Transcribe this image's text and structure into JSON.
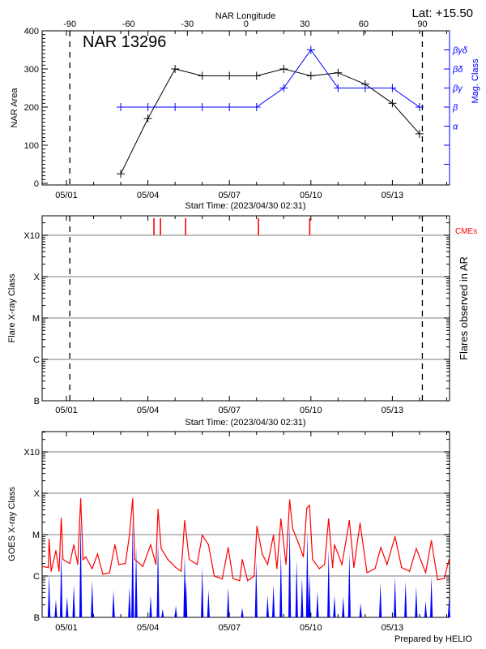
{
  "header": {
    "latitude": "Lat: +15.50",
    "region": "NAR 13296",
    "footer": "Prepared by HELIO"
  },
  "colors": {
    "area": "#000000",
    "mag_class": "#0000ff",
    "cme": "#ff0000",
    "goes_long": "#ff0000",
    "goes_short": "#0000ff",
    "grid": "#999999"
  },
  "chart_data": [
    {
      "type": "line",
      "panel": "nar",
      "title": "NAR 13296",
      "xlabel": "Start Time: (2023/04/30 02:31)",
      "x_range": [
        "2023/04/30 02:31",
        "2023/05/15 02:31"
      ],
      "x_tick_labels": [
        "05/01",
        "05/04",
        "05/07",
        "05/10",
        "05/13"
      ],
      "top_axis_label": "NAR Longitude",
      "top_axis_ticks": [
        "-90",
        "-60",
        "-30",
        "0",
        "30",
        "60",
        "90"
      ],
      "limb_lines": [
        "2023/05/01 03:00",
        "2023/05/14 02:30"
      ],
      "ylabel": "NAR Area",
      "ylim": [
        0,
        400
      ],
      "y_tick_labels": [
        "0",
        "100",
        "200",
        "300",
        "400"
      ],
      "y2label": "Mag. Class",
      "y2_tick_labels": [
        "",
        "",
        "α",
        "β",
        "βγ",
        "βδ",
        "βγδ"
      ],
      "x": [
        "2023/05/03 00:00",
        "2023/05/04 00:00",
        "2023/05/05 00:00",
        "2023/05/06 00:00",
        "2023/05/07 00:00",
        "2023/05/08 00:00",
        "2023/05/09 00:00",
        "2023/05/10 00:00",
        "2023/05/11 00:00",
        "2023/05/12 00:00",
        "2023/05/13 00:00",
        "2023/05/14 00:00"
      ],
      "series": [
        {
          "axis": "left",
          "values": [
            25,
            170,
            300,
            282,
            282,
            282,
            300,
            282,
            290,
            260,
            210,
            130
          ]
        },
        {
          "axis": "right",
          "values": [
            "β",
            "β",
            "β",
            "β",
            "β",
            "β",
            "βγ",
            "βγδ",
            "βγ",
            "βγ",
            "βγ",
            "β"
          ]
        }
      ]
    },
    {
      "type": "event",
      "panel": "flares",
      "xlabel": "Start Time: (2023/04/30 02:31)",
      "x_tick_labels": [
        "05/01",
        "05/04",
        "05/07",
        "05/10",
        "05/13"
      ],
      "ylabel": "Flare X-ray Class",
      "y2label": "Flares observed in AR",
      "y_tick_labels": [
        "B",
        "C",
        "M",
        "X",
        "X10"
      ],
      "grid": true,
      "cme_label": "CMEs",
      "cmes": [
        "2023/05/04 05:20",
        "2023/05/04 11:05",
        "2023/05/05 09:20",
        "2023/05/08 01:40",
        "2023/05/09 23:00"
      ],
      "flares": []
    },
    {
      "type": "line",
      "panel": "goes",
      "ylabel": "GOES X-ray Class",
      "x_tick_labels": [
        "05/01",
        "05/04",
        "05/07",
        "05/10",
        "05/13"
      ],
      "y_tick_labels": [
        "B",
        "C",
        "M",
        "X",
        "X10"
      ],
      "yscale": "log",
      "grid": true,
      "series": [
        {
          "channel": "long",
          "color": "#ff0000",
          "points": [
            [
              "2023/04/30 02:40",
              "C1.7"
            ],
            [
              "2023/04/30 08:00",
              "C1.6"
            ],
            [
              "2023/04/30 08:40",
              "C7.7"
            ],
            [
              "2023/04/30 10:30",
              "C1.3"
            ],
            [
              "2023/04/30 14:40",
              "C4.1"
            ],
            [
              "2023/04/30 17:30",
              "C1.3"
            ],
            [
              "2023/04/30 19:25",
              "M2.5"
            ],
            [
              "2023/04/30 21:00",
              "C2.5"
            ],
            [
              "2023/05/01 03:00",
              "C2.0"
            ],
            [
              "2023/05/01 06:30",
              "C5.7"
            ],
            [
              "2023/05/01 10:00",
              "C1.9"
            ],
            [
              "2023/05/01 12:35",
              "M7.4"
            ],
            [
              "2023/05/01 14:40",
              "C2.5"
            ],
            [
              "2023/05/01 17:05",
              "C2.9"
            ],
            [
              "2023/05/01 22:45",
              "C1.5"
            ],
            [
              "2023/05/02 03:30",
              "C3.4"
            ],
            [
              "2023/05/02 08:10",
              "C1.1"
            ],
            [
              "2023/05/02 14:05",
              "C1.2"
            ],
            [
              "2023/05/02 18:50",
              "C5.7"
            ],
            [
              "2023/05/02 22:20",
              "C1.9"
            ],
            [
              "2023/05/03 04:10",
              "C2.0"
            ],
            [
              "2023/05/03 07:40",
              "C9.7"
            ],
            [
              "2023/05/03 10:30",
              "M7.4"
            ],
            [
              "2023/05/03 12:25",
              "C2.5"
            ],
            [
              "2023/05/03 19:30",
              "C1.7"
            ],
            [
              "2023/05/04 02:25",
              "C5.7"
            ],
            [
              "2023/05/04 07:05",
              "C1.9"
            ],
            [
              "2023/05/04 08:55",
              "M4.1"
            ],
            [
              "2023/05/04 11:45",
              "C4.6"
            ],
            [
              "2023/05/04 17:40",
              "C2.5"
            ],
            [
              "2023/05/05 00:40",
              "C1.6"
            ],
            [
              "2023/05/05 05:25",
              "C1.3"
            ],
            [
              "2023/05/05 08:30",
              "M2.2"
            ],
            [
              "2023/05/05 12:30",
              "C2.5"
            ],
            [
              "2023/05/05 19:30",
              "C1.9"
            ],
            [
              "2023/05/06 00:00",
              "C9.7"
            ],
            [
              "2023/05/06 05:30",
              "C5.7"
            ],
            [
              "2023/05/06 10:35",
              "C1.0"
            ],
            [
              "2023/05/06 17:40",
              "B8.5"
            ],
            [
              "2023/05/06 22:55",
              "C4.9"
            ],
            [
              "2023/05/07 03:10",
              "B8.7"
            ],
            [
              "2023/05/07 09:00",
              "B7.7"
            ],
            [
              "2023/05/07 11:20",
              "C2.5"
            ],
            [
              "2023/05/07 16:05",
              "B7.7"
            ],
            [
              "2023/05/07 21:55",
              "C1.0"
            ],
            [
              "2023/05/08 00:20",
              "M1.6"
            ],
            [
              "2023/05/08 05:00",
              "C3.4"
            ],
            [
              "2023/05/08 09:45",
              "C1.9"
            ],
            [
              "2023/05/08 14:55",
              "C9.7"
            ],
            [
              "2023/05/08 18:00",
              "C1.5"
            ],
            [
              "2023/05/08 21:30",
              "M2.4"
            ],
            [
              "2023/05/09 02:00",
              "C1.9"
            ],
            [
              "2023/05/09 05:15",
              "M6.9"
            ],
            [
              "2023/05/09 07:55",
              "M1.4"
            ],
            [
              "2023/05/09 12:35",
              "C6.7"
            ],
            [
              "2023/05/09 17:20",
              "C2.9"
            ],
            [
              "2023/05/09 20:25",
              "M4.4"
            ],
            [
              "2023/05/09 22:45",
              "M5.1"
            ],
            [
              "2023/05/10 01:30",
              "C2.5"
            ],
            [
              "2023/05/10 07:25",
              "C1.5"
            ],
            [
              "2023/05/10 12:05",
              "C1.9"
            ],
            [
              "2023/05/10 15:40",
              "M2.4"
            ],
            [
              "2023/05/10 19:10",
              "C1.6"
            ],
            [
              "2023/05/10 20:50",
              "C5.7"
            ],
            [
              "2023/05/11 03:30",
              "C1.9"
            ],
            [
              "2023/05/11 10:00",
              "M2.2"
            ],
            [
              "2023/05/11 14:00",
              "C1.6"
            ],
            [
              "2023/05/11 19:25",
              "M1.9"
            ],
            [
              "2023/05/12 01:35",
              "C1.2"
            ],
            [
              "2023/05/12 08:40",
              "C1.5"
            ],
            [
              "2023/05/12 13:50",
              "C4.9"
            ],
            [
              "2023/05/12 19:15",
              "C1.9"
            ],
            [
              "2023/05/13 02:20",
              "C9.0"
            ],
            [
              "2023/05/13 08:10",
              "C1.6"
            ],
            [
              "2023/05/13 15:15",
              "C1.3"
            ],
            [
              "2023/05/13 21:05",
              "C4.6"
            ],
            [
              "2023/05/14 05:25",
              "C1.2"
            ],
            [
              "2023/05/14 10:30",
              "C7.2"
            ],
            [
              "2023/05/14 15:55",
              "B8.1"
            ],
            [
              "2023/05/14 21:50",
              "B8.7"
            ],
            [
              "2023/05/15 02:05",
              "C2.5"
            ]
          ]
        },
        {
          "channel": "short",
          "color": "#0000ff",
          "points": [
            [
              "2023/04/30 08:40",
              "C1.1"
            ],
            [
              "2023/04/30 14:40",
              "B2.7"
            ],
            [
              "2023/04/30 19:25",
              "C4.1"
            ],
            [
              "2023/05/01 00:35",
              "B3.2"
            ],
            [
              "2023/05/01 06:30",
              "B6.3"
            ],
            [
              "2023/05/01 12:35",
              "M2.3"
            ],
            [
              "2023/05/01 22:45",
              "B7.9"
            ],
            [
              "2023/05/02 17:35",
              "B4.6"
            ],
            [
              "2023/05/03 07:40",
              "B5.4"
            ],
            [
              "2023/05/03 10:30",
              "M2.3"
            ],
            [
              "2023/05/03 13:35",
              "C5.2"
            ],
            [
              "2023/05/04 02:25",
              "B3.4"
            ],
            [
              "2023/05/04 08:55",
              "C7.5"
            ],
            [
              "2023/05/04 13:00",
              "B1.6"
            ],
            [
              "2023/05/05 00:40",
              "B1.9"
            ],
            [
              "2023/05/05 08:30",
              "C3.3"
            ],
            [
              "2023/05/05 09:40",
              "B8.5"
            ],
            [
              "2023/05/06 00:00",
              "C1.7"
            ],
            [
              "2023/05/06 05:30",
              "B4.6"
            ],
            [
              "2023/05/06 22:55",
              "B5.4"
            ],
            [
              "2023/05/07 11:20",
              "B1.7"
            ],
            [
              "2023/05/07 23:40",
              "C2.3"
            ],
            [
              "2023/05/08 09:45",
              "B3.4"
            ],
            [
              "2023/05/08 14:55",
              "B6.3"
            ],
            [
              "2023/05/08 21:30",
              "C3.8"
            ],
            [
              "2023/05/09 05:15",
              "M2.0"
            ],
            [
              "2023/05/09 11:25",
              "C2.4"
            ],
            [
              "2023/05/09 16:10",
              "B9.1"
            ],
            [
              "2023/05/09 20:50",
              "M1.2"
            ],
            [
              "2023/05/09 22:45",
              "C1.1"
            ],
            [
              "2023/05/10 05:50",
              "B4.3"
            ],
            [
              "2023/05/10 15:40",
              "C4.4"
            ],
            [
              "2023/05/10 20:50",
              "B3.4"
            ],
            [
              "2023/05/11 04:35",
              "B3.2"
            ],
            [
              "2023/05/11 10:00",
              "C3.8"
            ],
            [
              "2023/05/11 19:55",
              "B2.2"
            ],
            [
              "2023/05/12 13:25",
              "B6.8"
            ],
            [
              "2023/05/13 02:20",
              "B9.8"
            ],
            [
              "2023/05/13 11:40",
              "B7.3"
            ],
            [
              "2023/05/13 21:05",
              "B5.4"
            ],
            [
              "2023/05/14 05:25",
              "B2.5"
            ],
            [
              "2023/05/14 10:30",
              "B9.8"
            ],
            [
              "2023/05/15 02:05",
              "B3.0"
            ]
          ]
        }
      ]
    }
  ]
}
